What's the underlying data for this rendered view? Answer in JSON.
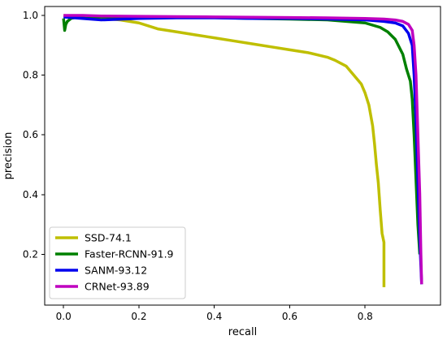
{
  "chart_data": {
    "type": "line",
    "title": "",
    "xlabel": "recall",
    "ylabel": "precision",
    "xlim": [
      -0.05,
      1.0
    ],
    "ylim": [
      0.03,
      1.03
    ],
    "xticks": [
      0.0,
      0.2,
      0.4,
      0.6,
      0.8
    ],
    "xtick_labels": [
      "0.0",
      "0.2",
      "0.4",
      "0.6",
      "0.8"
    ],
    "yticks": [
      0.2,
      0.4,
      0.6,
      0.8,
      1.0
    ],
    "ytick_labels": [
      "0.2",
      "0.4",
      "0.6",
      "0.8",
      "1.0"
    ],
    "grid": false,
    "legend_position": "lower-left",
    "series": [
      {
        "name": "SSD-74.1",
        "color": "#bfbf00",
        "x": [
          0.0,
          0.05,
          0.1,
          0.15,
          0.2,
          0.25,
          0.3,
          0.35,
          0.4,
          0.45,
          0.5,
          0.55,
          0.6,
          0.65,
          0.7,
          0.72,
          0.75,
          0.77,
          0.79,
          0.8,
          0.81,
          0.82,
          0.825,
          0.83,
          0.835,
          0.84,
          0.845,
          0.85,
          0.85
        ],
        "y": [
          1.0,
          0.995,
          0.99,
          0.985,
          0.975,
          0.955,
          0.945,
          0.935,
          0.925,
          0.915,
          0.905,
          0.895,
          0.885,
          0.875,
          0.86,
          0.85,
          0.83,
          0.8,
          0.77,
          0.74,
          0.7,
          0.63,
          0.57,
          0.5,
          0.44,
          0.35,
          0.27,
          0.24,
          0.09
        ]
      },
      {
        "name": "Faster-RCNN-91.9",
        "color": "#008000",
        "x": [
          0.0,
          0.003,
          0.006,
          0.01,
          0.02,
          0.04,
          0.06,
          0.1,
          0.2,
          0.3,
          0.4,
          0.5,
          0.6,
          0.7,
          0.75,
          0.8,
          0.84,
          0.86,
          0.88,
          0.9,
          0.91,
          0.92,
          0.925,
          0.93,
          0.935,
          0.94,
          0.945
        ],
        "y": [
          0.99,
          0.95,
          0.97,
          0.98,
          0.99,
          0.995,
          0.99,
          0.995,
          0.995,
          0.995,
          0.993,
          0.99,
          0.988,
          0.985,
          0.98,
          0.975,
          0.96,
          0.945,
          0.92,
          0.87,
          0.82,
          0.78,
          0.72,
          0.6,
          0.45,
          0.3,
          0.2
        ]
      },
      {
        "name": "SANM-93.12",
        "color": "#0000ee",
        "x": [
          0.0,
          0.05,
          0.1,
          0.2,
          0.3,
          0.4,
          0.5,
          0.6,
          0.7,
          0.8,
          0.85,
          0.88,
          0.9,
          0.915,
          0.925,
          0.93,
          0.935,
          0.94,
          0.945,
          0.95
        ],
        "y": [
          0.995,
          0.99,
          0.985,
          0.99,
          0.992,
          0.992,
          0.99,
          0.99,
          0.988,
          0.985,
          0.98,
          0.975,
          0.965,
          0.94,
          0.9,
          0.8,
          0.65,
          0.45,
          0.25,
          0.1
        ]
      },
      {
        "name": "CRNet-93.89",
        "color": "#bf00bf",
        "x": [
          0.0,
          0.05,
          0.1,
          0.2,
          0.3,
          0.4,
          0.5,
          0.6,
          0.7,
          0.8,
          0.85,
          0.88,
          0.9,
          0.915,
          0.925,
          0.93,
          0.935,
          0.94,
          0.945,
          0.948,
          0.95
        ],
        "y": [
          1.0,
          1.0,
          0.998,
          0.997,
          0.996,
          0.995,
          0.994,
          0.993,
          0.992,
          0.99,
          0.988,
          0.985,
          0.98,
          0.97,
          0.95,
          0.9,
          0.8,
          0.6,
          0.4,
          0.2,
          0.1
        ]
      }
    ]
  }
}
